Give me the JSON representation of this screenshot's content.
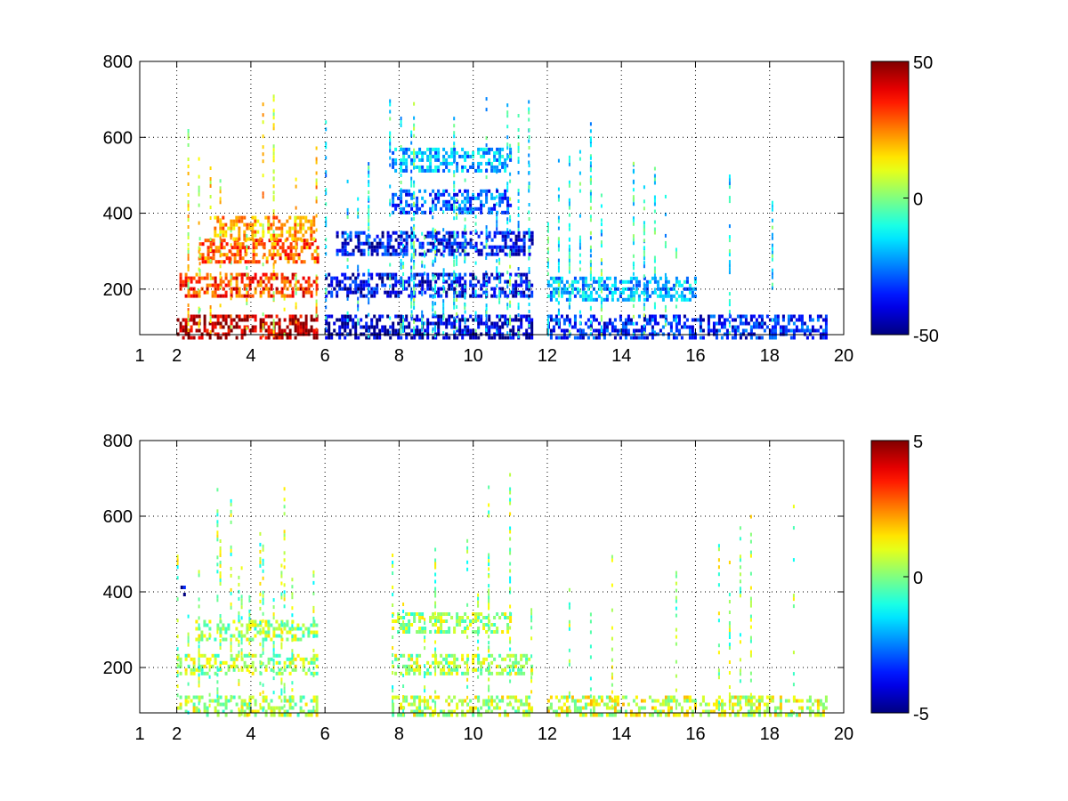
{
  "chart_data": [
    {
      "type": "heatmap",
      "title": "",
      "xlabel": "",
      "ylabel": "",
      "xlim": [
        1,
        20
      ],
      "ylim": [
        80,
        800
      ],
      "x_ticks": [
        1,
        2,
        4,
        6,
        8,
        10,
        12,
        14,
        16,
        18,
        20
      ],
      "y_ticks": [
        200,
        400,
        600,
        800
      ],
      "grid": true,
      "colormap": "jet",
      "colorbar": {
        "min": -50,
        "max": 50,
        "ticks": [
          -50,
          0,
          50
        ]
      },
      "features": [
        {
          "x": [
            2.0,
            5.8
          ],
          "y": 100,
          "value": 45
        },
        {
          "x": [
            2.0,
            5.8
          ],
          "y": 210,
          "value": 32
        },
        {
          "x": [
            2.6,
            5.8
          ],
          "y": 300,
          "value": 28
        },
        {
          "x": [
            3.0,
            5.7
          ],
          "y": 360,
          "value": 20
        },
        {
          "x": [
            6.0,
            11.6
          ],
          "y": 100,
          "value": -45
        },
        {
          "x": [
            6.0,
            11.6
          ],
          "y": 210,
          "value": -40
        },
        {
          "x": [
            6.3,
            11.6
          ],
          "y": 320,
          "value": -38
        },
        {
          "x": [
            7.8,
            11.0
          ],
          "y": 430,
          "value": -30
        },
        {
          "x": [
            7.8,
            11.0
          ],
          "y": 540,
          "value": -20
        },
        {
          "x": [
            12.0,
            19.5
          ],
          "y": 100,
          "value": -35
        },
        {
          "x": [
            12.0,
            16.0
          ],
          "y": 200,
          "value": -20
        }
      ]
    },
    {
      "type": "heatmap",
      "title": "",
      "xlabel": "",
      "ylabel": "",
      "xlim": [
        1,
        20
      ],
      "ylim": [
        80,
        800
      ],
      "x_ticks": [
        1,
        2,
        4,
        6,
        8,
        10,
        12,
        14,
        16,
        18,
        20
      ],
      "y_ticks": [
        200,
        400,
        600,
        800
      ],
      "grid": true,
      "colormap": "jet",
      "colorbar": {
        "min": -5,
        "max": 5,
        "ticks": [
          -5,
          0,
          5
        ]
      },
      "features": [
        {
          "x": [
            2.0,
            5.8
          ],
          "y": 100,
          "value": 0.5
        },
        {
          "x": [
            2.0,
            5.8
          ],
          "y": 210,
          "value": 0.4
        },
        {
          "x": [
            2.5,
            5.8
          ],
          "y": 300,
          "value": 0.3
        },
        {
          "x": [
            7.8,
            11.6
          ],
          "y": 100,
          "value": 0.6
        },
        {
          "x": [
            7.8,
            11.6
          ],
          "y": 210,
          "value": 0.4
        },
        {
          "x": [
            7.8,
            11.0
          ],
          "y": 320,
          "value": 0.3
        },
        {
          "x": [
            12.0,
            19.5
          ],
          "y": 100,
          "value": 0.8
        },
        {
          "x": [
            2.1,
            2.2
          ],
          "y": 400,
          "value": -4.5
        }
      ]
    }
  ]
}
